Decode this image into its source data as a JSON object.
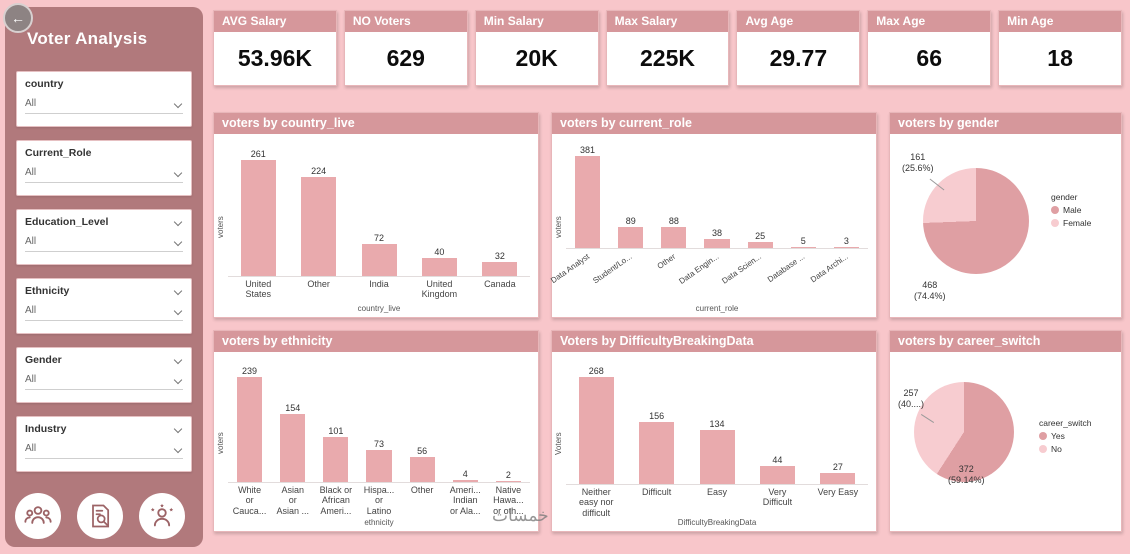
{
  "icons": {
    "back_arrow": "←",
    "chevron_down": "css-chevron-shape",
    "footer": [
      "people-group-icon",
      "report-search-icon",
      "person-stars-icon"
    ]
  },
  "colors": {
    "background": "#f8c6ca",
    "sidebar": "#b1797c",
    "card_header": "#d6979b",
    "bar": "#e9aaad",
    "pie_dark": "#df9fa3",
    "pie_light": "#f7ccd0"
  },
  "sidebar": {
    "title": "Voter Analysis",
    "filters": [
      {
        "label": "country",
        "value": "All",
        "collapse_chevron": false
      },
      {
        "label": "Current_Role",
        "value": "All",
        "collapse_chevron": false
      },
      {
        "label": "Education_Level",
        "value": "All",
        "collapse_chevron": true
      },
      {
        "label": "Ethnicity",
        "value": "All",
        "collapse_chevron": true
      },
      {
        "label": "Gender",
        "value": "All",
        "collapse_chevron": true
      },
      {
        "label": "Industry",
        "value": "All",
        "collapse_chevron": true
      }
    ]
  },
  "kpis": [
    {
      "label": "AVG Salary",
      "value": "53.96K"
    },
    {
      "label": "NO Voters",
      "value": "629"
    },
    {
      "label": "Min Salary",
      "value": "20K"
    },
    {
      "label": "Max Salary",
      "value": "225K"
    },
    {
      "label": "Avg Age",
      "value": "29.77"
    },
    {
      "label": "Max Age",
      "value": "66"
    },
    {
      "label": "Min Age",
      "value": "18"
    }
  ],
  "watermark": "خمسات",
  "chart_data": [
    {
      "type": "bar",
      "title": "voters by country_live",
      "ylabel": "voters",
      "xlabel": "country_live",
      "rotated_labels": false,
      "categories": [
        "United\nStates",
        "Other",
        "India",
        "United\nKingdom",
        "Canada"
      ],
      "values": [
        261,
        224,
        72,
        40,
        32
      ]
    },
    {
      "type": "bar",
      "title": "voters by current_role",
      "ylabel": "voters",
      "xlabel": "current_role",
      "rotated_labels": true,
      "categories": [
        "Data Analyst",
        "Student/Lo...",
        "Other",
        "Data Engin...",
        "Data Scien...",
        "Database ...",
        "Data Archi..."
      ],
      "values": [
        381,
        89,
        88,
        38,
        25,
        5,
        3
      ]
    },
    {
      "type": "pie",
      "title": "voters by gender",
      "legend_title": "gender",
      "slices": [
        {
          "name": "Male",
          "value": 468,
          "pct": 74.4,
          "callout": "468\n(74.4%)",
          "color": "#df9fa3"
        },
        {
          "name": "Female",
          "value": 161,
          "pct": 25.6,
          "callout": "161\n(25.6%)",
          "color": "#f7ccd0"
        }
      ]
    },
    {
      "type": "bar",
      "title": "voters by ethnicity",
      "ylabel": "voters",
      "xlabel": "ethnicity",
      "rotated_labels": false,
      "categories": [
        "White\nor\nCauca...",
        "Asian\nor\nAsian ...",
        "Black or\nAfrican\nAmeri...",
        "Hispa...\nor\nLatino",
        "Other",
        "Ameri...\nIndian\nor Ala...",
        "Native\nHawa...\nor oth..."
      ],
      "values": [
        239,
        154,
        101,
        73,
        56,
        4,
        2
      ]
    },
    {
      "type": "bar",
      "title": "Voters by DifficultyBreakingData",
      "ylabel": "Voters",
      "xlabel": "DifficultyBreakingData",
      "rotated_labels": false,
      "categories": [
        "Neither\neasy nor\ndifficult",
        "Difficult",
        "Easy",
        "Very\nDifficult",
        "Very Easy"
      ],
      "values": [
        268,
        156,
        134,
        44,
        27
      ]
    },
    {
      "type": "pie",
      "title": "voters by career_switch",
      "legend_title": "career_switch",
      "slices": [
        {
          "name": "Yes",
          "value": 372,
          "pct": 59.14,
          "callout": "372\n(59.14%)",
          "color": "#df9fa3"
        },
        {
          "name": "No",
          "value": 257,
          "pct": 40.86,
          "callout": "257\n(40....)",
          "color": "#f7ccd0"
        }
      ]
    }
  ]
}
